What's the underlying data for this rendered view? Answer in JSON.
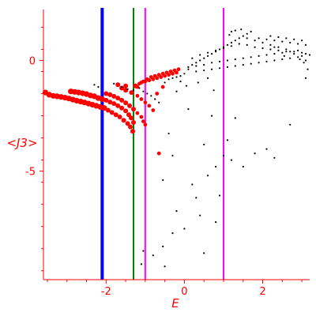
{
  "chart_data": {
    "type": "scatter",
    "xlabel": "E",
    "ylabel": "<J3>",
    "xlim": [
      -3.6,
      3.2
    ],
    "ylim": [
      -9.9,
      2.3
    ],
    "xticks": [
      -2,
      0,
      2
    ],
    "xtick_labels": [
      "-2",
      "0",
      "2"
    ],
    "yticks": [
      0,
      -5
    ],
    "ytick_labels": [
      "0",
      "-5"
    ],
    "grid": false,
    "legend": "none",
    "axis_color": "#ff0000",
    "vlines": [
      {
        "x": -2.1,
        "color": "#0000ff",
        "width": "thick"
      },
      {
        "x": -1.3,
        "color": "#008000",
        "width": "thin"
      },
      {
        "x": -1.0,
        "color": "#ff00ff",
        "width": "thin"
      },
      {
        "x": 1.0,
        "color": "#ff00ff",
        "width": "thin"
      }
    ],
    "series": [
      {
        "color": "#ff0000",
        "marker": "large-dot",
        "points": [
          [
            -3.55,
            -1.45
          ],
          [
            -3.45,
            -1.55
          ],
          [
            -3.35,
            -1.6
          ],
          [
            -3.25,
            -1.62
          ],
          [
            -3.15,
            -1.65
          ],
          [
            -3.05,
            -1.68
          ],
          [
            -2.95,
            -1.72
          ],
          [
            -2.85,
            -1.77
          ],
          [
            -2.75,
            -1.82
          ],
          [
            -2.65,
            -1.86
          ],
          [
            -2.55,
            -1.9
          ],
          [
            -2.45,
            -1.95
          ],
          [
            -2.35,
            -2.0
          ],
          [
            -2.25,
            -2.05
          ],
          [
            -2.15,
            -2.1
          ],
          [
            -2.05,
            -2.15
          ],
          [
            -1.95,
            -2.25
          ],
          [
            -1.85,
            -2.35
          ],
          [
            -1.75,
            -2.45
          ],
          [
            -1.65,
            -2.55
          ],
          [
            -1.55,
            -2.7
          ],
          [
            -1.45,
            -2.85
          ],
          [
            -1.38,
            -3.0
          ],
          [
            -1.32,
            -3.2
          ],
          [
            -2.9,
            -1.4
          ],
          [
            -2.8,
            -1.42
          ],
          [
            -2.7,
            -1.45
          ],
          [
            -2.6,
            -1.48
          ],
          [
            -2.5,
            -1.52
          ],
          [
            -2.4,
            -1.58
          ],
          [
            -2.3,
            -1.62
          ],
          [
            -2.2,
            -1.7
          ],
          [
            -2.1,
            -1.75
          ],
          [
            -2.0,
            -1.8
          ],
          [
            -1.9,
            -1.88
          ],
          [
            -1.8,
            -1.95
          ],
          [
            -1.7,
            -2.05
          ],
          [
            -1.6,
            -2.15
          ],
          [
            -1.5,
            -2.28
          ],
          [
            -1.42,
            -2.45
          ],
          [
            -1.36,
            -2.6
          ],
          [
            -1.3,
            -2.8
          ],
          [
            -2.0,
            -1.5
          ],
          [
            -1.9,
            -1.55
          ],
          [
            -1.8,
            -1.62
          ],
          [
            -1.7,
            -1.7
          ],
          [
            -1.6,
            -1.8
          ],
          [
            -1.5,
            -1.92
          ],
          [
            -1.4,
            -2.05
          ],
          [
            -1.3,
            -2.2
          ],
          [
            -1.2,
            -2.38
          ],
          [
            -1.1,
            -2.55
          ],
          [
            -1.05,
            -2.75
          ],
          [
            -1.0,
            -2.9
          ],
          [
            -1.6,
            -1.25
          ],
          [
            -1.5,
            -1.35
          ],
          [
            -1.35,
            -1.45
          ],
          [
            -1.2,
            -1.6
          ],
          [
            -1.1,
            -1.75
          ],
          [
            -1.0,
            -1.9
          ],
          [
            -0.9,
            -2.05
          ],
          [
            -0.8,
            -2.25
          ],
          [
            -1.7,
            -1.1
          ],
          [
            -1.5,
            -1.15
          ],
          [
            -1.2,
            -1.2
          ],
          [
            -1.25,
            -1.15
          ],
          [
            -1.15,
            -1.05
          ],
          [
            -1.05,
            -0.95
          ],
          [
            -0.95,
            -0.85
          ],
          [
            -0.85,
            -0.75
          ],
          [
            -0.75,
            -0.7
          ],
          [
            -0.65,
            -0.65
          ],
          [
            -0.55,
            -0.6
          ],
          [
            -0.45,
            -0.55
          ],
          [
            -0.35,
            -0.5
          ],
          [
            -0.25,
            -0.45
          ],
          [
            -0.15,
            -0.4
          ],
          [
            -1.1,
            -1.0
          ],
          [
            -1.0,
            -0.95
          ],
          [
            -0.9,
            -0.9
          ],
          [
            -0.8,
            -0.85
          ],
          [
            -0.7,
            -0.8
          ],
          [
            -0.6,
            -0.75
          ],
          [
            -0.5,
            -0.7
          ],
          [
            -0.4,
            -0.65
          ],
          [
            -0.3,
            -0.6
          ],
          [
            -0.2,
            -0.55
          ],
          [
            -0.65,
            -4.2
          ],
          [
            -0.55,
            -1.2
          ],
          [
            -0.7,
            -1.5
          ]
        ]
      },
      {
        "color": "#000000",
        "marker": "small-dot",
        "points": [
          [
            -2.3,
            -1.1
          ],
          [
            -2.2,
            -1.2
          ],
          [
            -1.8,
            -1.05
          ],
          [
            -1.6,
            -1.2
          ],
          [
            -1.45,
            -1.3
          ],
          [
            -1.3,
            -1.35
          ],
          [
            -1.15,
            -1.25
          ],
          [
            -1.05,
            -1.4
          ],
          [
            -0.95,
            -1.5
          ],
          [
            -0.85,
            -1.6
          ],
          [
            -0.75,
            -1.75
          ],
          [
            -0.65,
            -1.9
          ],
          [
            -0.5,
            -1.0
          ],
          [
            -0.4,
            -0.85
          ],
          [
            -0.3,
            -0.8
          ],
          [
            -0.2,
            -0.75
          ],
          [
            -0.1,
            -0.7
          ],
          [
            0.0,
            -0.6
          ],
          [
            0.1,
            -0.4
          ],
          [
            0.2,
            -0.2
          ],
          [
            0.3,
            -0.1
          ],
          [
            0.4,
            0.0
          ],
          [
            0.5,
            0.1
          ],
          [
            0.6,
            0.2
          ],
          [
            0.7,
            0.3
          ],
          [
            0.8,
            0.4
          ],
          [
            0.9,
            0.5
          ],
          [
            1.0,
            0.6
          ],
          [
            1.1,
            0.7
          ],
          [
            1.2,
            0.8
          ],
          [
            1.3,
            0.9
          ],
          [
            1.4,
            1.0
          ],
          [
            1.5,
            1.1
          ],
          [
            1.6,
            1.2
          ],
          [
            1.7,
            1.3
          ],
          [
            1.3,
            1.35
          ],
          [
            1.2,
            1.3
          ],
          [
            1.15,
            1.15
          ],
          [
            1.45,
            1.4
          ],
          [
            1.6,
            1.0
          ],
          [
            1.8,
            0.9
          ],
          [
            2.0,
            0.8
          ],
          [
            2.2,
            0.7
          ],
          [
            2.4,
            0.6
          ],
          [
            2.6,
            0.5
          ],
          [
            2.8,
            0.4
          ],
          [
            3.0,
            0.35
          ],
          [
            3.1,
            0.3
          ],
          [
            3.2,
            0.25
          ],
          [
            0.1,
            -0.3
          ],
          [
            0.3,
            -0.25
          ],
          [
            0.5,
            -0.2
          ],
          [
            0.7,
            -0.1
          ],
          [
            0.9,
            -0.05
          ],
          [
            1.1,
            0.0
          ],
          [
            1.3,
            0.05
          ],
          [
            1.5,
            0.1
          ],
          [
            1.7,
            0.15
          ],
          [
            1.9,
            0.2
          ],
          [
            2.1,
            0.25
          ],
          [
            2.3,
            0.3
          ],
          [
            2.5,
            0.35
          ],
          [
            2.7,
            0.4
          ],
          [
            2.9,
            0.45
          ],
          [
            0.2,
            0.1
          ],
          [
            0.4,
            0.25
          ],
          [
            0.6,
            0.35
          ],
          [
            0.8,
            0.45
          ],
          [
            1.0,
            0.55
          ],
          [
            1.2,
            0.65
          ],
          [
            1.4,
            0.75
          ],
          [
            1.6,
            0.7
          ],
          [
            1.8,
            0.6
          ],
          [
            2.0,
            0.55
          ],
          [
            2.2,
            0.5
          ],
          [
            2.4,
            0.45
          ],
          [
            2.6,
            0.4
          ],
          [
            2.8,
            0.3
          ],
          [
            3.0,
            0.2
          ],
          [
            0.3,
            -0.5
          ],
          [
            0.5,
            -0.45
          ],
          [
            0.7,
            -0.4
          ],
          [
            0.9,
            -0.35
          ],
          [
            1.1,
            -0.3
          ],
          [
            1.3,
            -0.25
          ],
          [
            1.5,
            -0.2
          ],
          [
            1.7,
            -0.15
          ],
          [
            1.9,
            -0.1
          ],
          [
            2.1,
            -0.05
          ],
          [
            2.3,
            0.0
          ],
          [
            2.5,
            0.05
          ],
          [
            2.7,
            0.1
          ],
          [
            2.9,
            0.15
          ],
          [
            3.1,
            0.0
          ],
          [
            1.9,
            1.0
          ],
          [
            2.1,
            0.95
          ],
          [
            2.3,
            0.9
          ],
          [
            2.5,
            0.85
          ],
          [
            2.7,
            0.8
          ],
          [
            2.9,
            0.75
          ],
          [
            3.1,
            0.7
          ],
          [
            2.2,
            1.1
          ],
          [
            2.4,
            1.05
          ],
          [
            2.6,
            1.0
          ],
          [
            2.8,
            0.95
          ],
          [
            3.0,
            0.9
          ],
          [
            2.3,
            0.6
          ],
          [
            2.55,
            0.2
          ],
          [
            3.15,
            -0.4
          ],
          [
            3.1,
            -0.8
          ],
          [
            3.05,
            -0.1
          ],
          [
            2.95,
            0.05
          ],
          [
            -0.1,
            -0.95
          ],
          [
            0.05,
            -1.15
          ],
          [
            -0.2,
            -1.4
          ],
          [
            0.35,
            -1.0
          ],
          [
            0.6,
            -0.8
          ],
          [
            0.75,
            -1.35
          ],
          [
            0.1,
            -2.2
          ],
          [
            -0.4,
            -3.3
          ],
          [
            -0.55,
            -5.4
          ],
          [
            -0.2,
            -6.8
          ],
          [
            -0.3,
            -7.8
          ],
          [
            -0.55,
            -8.4
          ],
          [
            -0.8,
            -8.8
          ],
          [
            -1.05,
            -8.6
          ],
          [
            -1.1,
            -9.2
          ],
          [
            -0.5,
            -9.3
          ],
          [
            0.3,
            -6.2
          ],
          [
            0.6,
            -5.2
          ],
          [
            0.8,
            -4.8
          ],
          [
            1.0,
            -4.3
          ],
          [
            1.2,
            -4.5
          ],
          [
            1.5,
            -4.8
          ],
          [
            1.8,
            -4.2
          ],
          [
            2.3,
            -4.4
          ],
          [
            2.7,
            -2.9
          ],
          [
            0.7,
            -2.5
          ],
          [
            1.1,
            -3.6
          ],
          [
            0.4,
            -7.0
          ],
          [
            0.9,
            -6.1
          ],
          [
            0.5,
            -8.7
          ],
          [
            0.0,
            -7.6
          ],
          [
            2.1,
            -4.0
          ],
          [
            1.3,
            -2.6
          ],
          [
            0.2,
            -5.6
          ],
          [
            -0.3,
            -4.3
          ],
          [
            0.5,
            -3.8
          ],
          [
            0.8,
            -7.3
          ]
        ]
      }
    ]
  }
}
